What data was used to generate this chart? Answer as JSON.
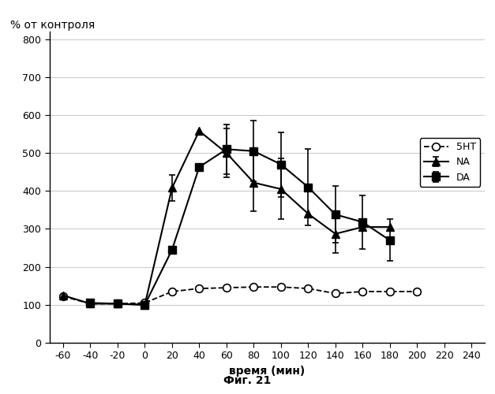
{
  "title_ylabel": "% от контроля",
  "xlabel": "время (мин)",
  "caption": "Фиг. 21",
  "xlim": [
    -70,
    250
  ],
  "ylim": [
    0,
    820
  ],
  "xticks": [
    -60,
    -40,
    -20,
    0,
    20,
    40,
    60,
    80,
    100,
    120,
    140,
    160,
    180,
    200,
    220,
    240
  ],
  "yticks": [
    0,
    100,
    200,
    300,
    400,
    500,
    600,
    700,
    800
  ],
  "NA": {
    "x": [
      -60,
      -40,
      -20,
      0,
      20,
      40,
      60,
      80,
      100,
      120,
      140,
      160,
      180
    ],
    "y": [
      125,
      103,
      103,
      100,
      408,
      558,
      500,
      422,
      405,
      340,
      287,
      305,
      305
    ],
    "yerr": [
      null,
      null,
      null,
      null,
      35,
      null,
      65,
      75,
      80,
      null,
      50,
      null,
      null
    ],
    "color": "#000000",
    "marker": "^",
    "markersize": 7,
    "linestyle": "-",
    "linewidth": 1.5,
    "label": "NA"
  },
  "DA": {
    "x": [
      -40,
      -20,
      0,
      20,
      40,
      60,
      80,
      100,
      120,
      140,
      160,
      180
    ],
    "y": [
      105,
      103,
      100,
      245,
      463,
      510,
      505,
      470,
      410,
      338,
      318,
      270
    ],
    "yerr": [
      null,
      null,
      null,
      null,
      null,
      65,
      80,
      85,
      100,
      75,
      70,
      55
    ],
    "color": "#000000",
    "marker": "s",
    "markersize": 7,
    "linestyle": "-",
    "linewidth": 1.5,
    "label": "DA"
  },
  "5HT": {
    "x": [
      -60,
      -40,
      -20,
      0,
      20,
      40,
      60,
      80,
      100,
      120,
      140,
      160,
      180,
      200
    ],
    "y": [
      122,
      103,
      103,
      105,
      135,
      143,
      145,
      147,
      147,
      143,
      130,
      135,
      135,
      135
    ],
    "color": "#000000",
    "marker": "o",
    "markersize": 7,
    "linestyle": "--",
    "linewidth": 1.3,
    "label": "5HT"
  },
  "legend_loc": "center right",
  "background_color": "#ffffff",
  "grid_color": "#cccccc",
  "tick_fontsize": 9,
  "label_fontsize": 10,
  "legend_fontsize": 9
}
